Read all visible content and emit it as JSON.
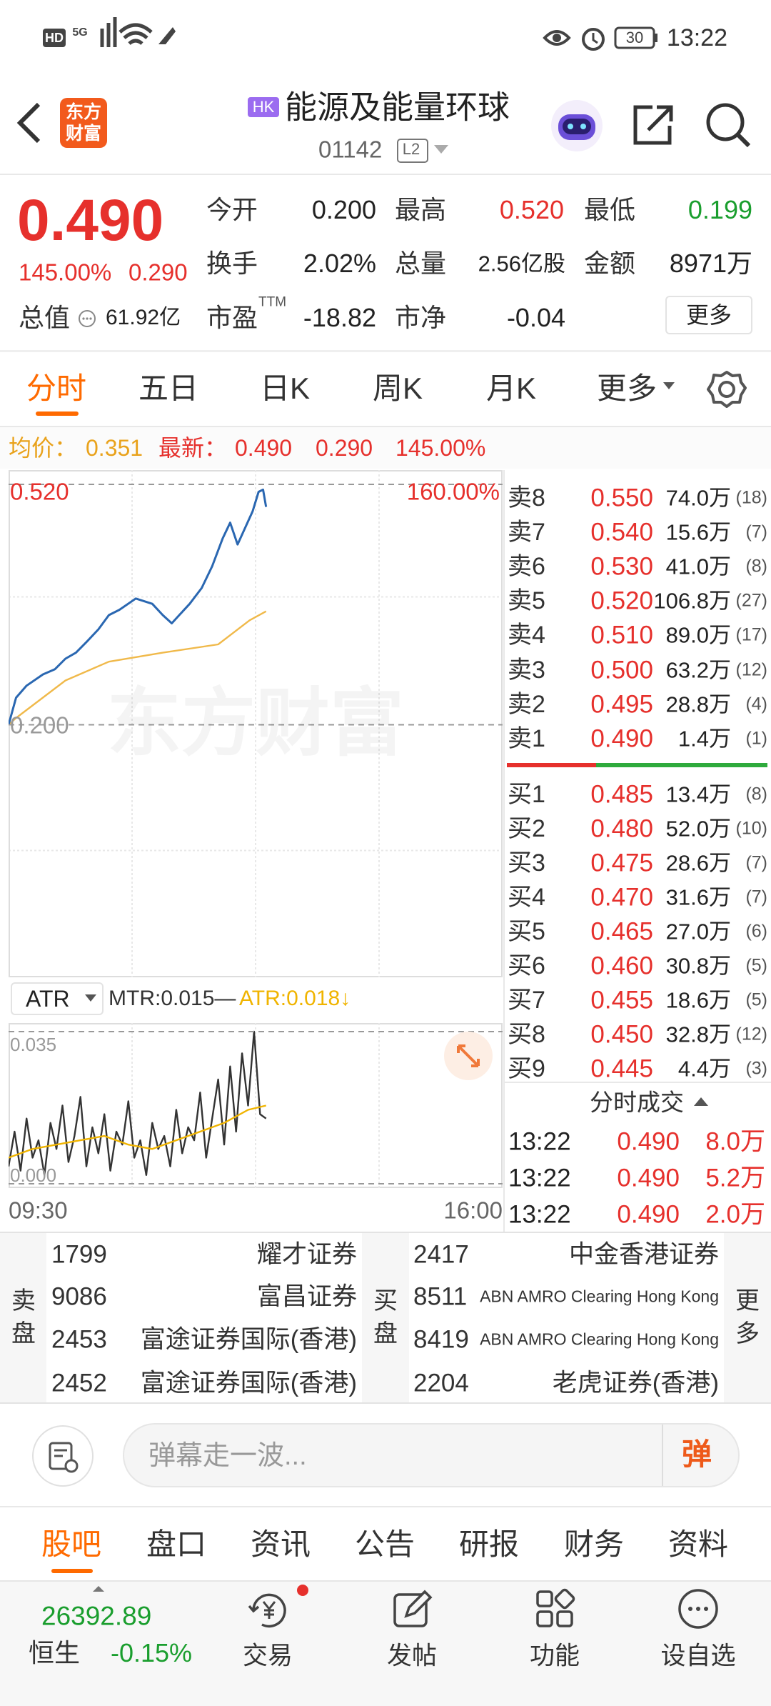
{
  "status_bar": {
    "network": "HD",
    "signal": "5G",
    "battery": "30",
    "time": "13:22"
  },
  "header": {
    "logo": "东方财富",
    "market": "HK",
    "title": "能源及能量环球",
    "code": "01142",
    "level": "L2"
  },
  "quote": {
    "price": "0.490",
    "change_pct": "145.00%",
    "change": "0.290",
    "fields": [
      {
        "label": "今开",
        "value": "0.200"
      },
      {
        "label": "最高",
        "value": "0.520"
      },
      {
        "label": "最低",
        "value": "0.199"
      },
      {
        "label": "换手",
        "value": "2.02%"
      },
      {
        "label": "总量",
        "value": "2.56亿股"
      },
      {
        "label": "金额",
        "value": "8971万"
      },
      {
        "label": "总值",
        "value": "61.92亿"
      },
      {
        "label": "市盈",
        "superscript": "TTM",
        "value": "-18.82"
      },
      {
        "label": "市净",
        "value": "-0.04"
      }
    ],
    "more": "更多"
  },
  "tabs": {
    "items": [
      "分时",
      "五日",
      "日K",
      "周K",
      "月K",
      "更多"
    ],
    "active": 0
  },
  "info": {
    "avg": "0.351",
    "latest": "0.490",
    "change": "0.290",
    "change_pct": "145.00%"
  },
  "chart_data": [
    {
      "type": "line",
      "watermark": "东方财富",
      "grid": true,
      "xlim": [
        0,
        330
      ],
      "ylim": [
        -0.12,
        0.52
      ],
      "y2lim": [
        -160,
        160
      ],
      "yticks": [
        {
          "value": 0.52,
          "label": "0.520"
        },
        {
          "value": 0.2,
          "label": "0.200"
        }
      ],
      "y2ticks": [
        {
          "value": 160,
          "label": "160.00%"
        }
      ],
      "series": [
        {
          "name": "均价：",
          "color": "#f0b94a",
          "x": [
            0,
            5,
            38,
            67,
            103,
            140,
            161,
            172
          ],
          "values": [
            0.2,
            0.209,
            0.259,
            0.284,
            0.296,
            0.307,
            0.339,
            0.351
          ]
        },
        {
          "name": "最新：",
          "color": "#2a67b1",
          "x": [
            0,
            5,
            12,
            23,
            31,
            38,
            45,
            52,
            60,
            67,
            74,
            85,
            96,
            103,
            109,
            114,
            121,
            129,
            136,
            143,
            148,
            153,
            158,
            163,
            167,
            170,
            172
          ],
          "values": [
            0.2,
            0.236,
            0.252,
            0.267,
            0.274,
            0.288,
            0.296,
            0.31,
            0.327,
            0.346,
            0.353,
            0.368,
            0.361,
            0.346,
            0.335,
            0.346,
            0.361,
            0.382,
            0.411,
            0.448,
            0.469,
            0.44,
            0.462,
            0.484,
            0.51,
            0.513,
            0.49
          ]
        }
      ]
    },
    {
      "type": "line",
      "indicator": "ATR",
      "grid": true,
      "xlim": [
        0,
        330
      ],
      "ylim": [
        0,
        0.035
      ],
      "xticks": [
        {
          "value": 0,
          "label": "09:30"
        },
        {
          "value": 330,
          "label": "16:00"
        }
      ],
      "yticks": [
        {
          "value": 0.035,
          "label": "0.035"
        },
        {
          "value": 0,
          "label": "0.000"
        }
      ],
      "series": [
        {
          "name": "MTR",
          "legend": "MTR:0.015—",
          "color": "#333333",
          "x": [
            0,
            4,
            8,
            12,
            16,
            20,
            24,
            28,
            32,
            36,
            40,
            44,
            48,
            52,
            56,
            60,
            64,
            68,
            72,
            76,
            80,
            84,
            88,
            92,
            96,
            100,
            104,
            108,
            112,
            116,
            120,
            124,
            128,
            132,
            136,
            140,
            144,
            148,
            152,
            156,
            160,
            164,
            168,
            172
          ],
          "values": [
            0.004,
            0.012,
            0.003,
            0.015,
            0.006,
            0.01,
            0.002,
            0.014,
            0.008,
            0.018,
            0.005,
            0.011,
            0.02,
            0.004,
            0.013,
            0.007,
            0.016,
            0.003,
            0.012,
            0.009,
            0.019,
            0.006,
            0.01,
            0.002,
            0.014,
            0.008,
            0.011,
            0.004,
            0.017,
            0.007,
            0.013,
            0.01,
            0.021,
            0.006,
            0.015,
            0.024,
            0.009,
            0.027,
            0.012,
            0.03,
            0.018,
            0.035,
            0.016,
            0.015
          ]
        },
        {
          "name": "ATR",
          "legend": "ATR:0.018↓",
          "color": "#f0b400",
          "x": [
            0,
            16,
            32,
            48,
            64,
            80,
            96,
            112,
            128,
            144,
            160,
            172
          ],
          "values": [
            0.006,
            0.008,
            0.009,
            0.01,
            0.011,
            0.009,
            0.008,
            0.01,
            0.012,
            0.014,
            0.017,
            0.018
          ]
        }
      ]
    }
  ],
  "order_book": {
    "asks": [
      {
        "label": "卖8",
        "price": "0.550",
        "volume": "74.0万",
        "count": "(18)"
      },
      {
        "label": "卖7",
        "price": "0.540",
        "volume": "15.6万",
        "count": "(7)"
      },
      {
        "label": "卖6",
        "price": "0.530",
        "volume": "41.0万",
        "count": "(8)"
      },
      {
        "label": "卖5",
        "price": "0.520",
        "volume": "106.8万",
        "count": "(27)"
      },
      {
        "label": "卖4",
        "price": "0.510",
        "volume": "89.0万",
        "count": "(17)"
      },
      {
        "label": "卖3",
        "price": "0.500",
        "volume": "63.2万",
        "count": "(12)"
      },
      {
        "label": "卖2",
        "price": "0.495",
        "volume": "28.8万",
        "count": "(4)"
      },
      {
        "label": "卖1",
        "price": "0.490",
        "volume": "1.4万",
        "count": "(1)"
      }
    ],
    "bids": [
      {
        "label": "买1",
        "price": "0.485",
        "volume": "13.4万",
        "count": "(8)"
      },
      {
        "label": "买2",
        "price": "0.480",
        "volume": "52.0万",
        "count": "(10)"
      },
      {
        "label": "买3",
        "price": "0.475",
        "volume": "28.6万",
        "count": "(7)"
      },
      {
        "label": "买4",
        "price": "0.470",
        "volume": "31.6万",
        "count": "(7)"
      },
      {
        "label": "买5",
        "price": "0.465",
        "volume": "27.0万",
        "count": "(6)"
      },
      {
        "label": "买6",
        "price": "0.460",
        "volume": "30.8万",
        "count": "(5)"
      },
      {
        "label": "买7",
        "price": "0.455",
        "volume": "18.6万",
        "count": "(5)"
      },
      {
        "label": "买8",
        "price": "0.450",
        "volume": "32.8万",
        "count": "(12)"
      },
      {
        "label": "买9",
        "price": "0.445",
        "volume": "4.4万",
        "count": "(3)"
      }
    ]
  },
  "trades": {
    "title": "分时成交",
    "rows": [
      [
        "13:22",
        "0.490",
        "8.0万"
      ],
      [
        "13:22",
        "0.490",
        "5.2万"
      ],
      [
        "13:22",
        "0.490",
        "2.0万"
      ]
    ]
  },
  "brokers": {
    "sell_label": "卖盘",
    "buy_label": "买盘",
    "more": "更多",
    "sell": [
      [
        "1799",
        "耀才证券"
      ],
      [
        "9086",
        "富昌证券"
      ],
      [
        "2453",
        "富途证券国际(香港)"
      ],
      [
        "2452",
        "富途证券国际(香港)"
      ]
    ],
    "buy": [
      [
        "2417",
        "中金香港证券"
      ],
      [
        "8511",
        "ABN AMRO Clearing Hong Kong"
      ],
      [
        "8419",
        "ABN AMRO Clearing Hong Kong"
      ],
      [
        "2204",
        "老虎证券(香港)"
      ]
    ]
  },
  "comment": {
    "placeholder": "弹幕走一波...",
    "button": "弹"
  },
  "bottom_tabs": {
    "items": [
      "股吧",
      "盘口",
      "资讯",
      "公告",
      "研报",
      "财务",
      "资料"
    ],
    "active": 0
  },
  "nav": {
    "index": {
      "value": "26392.89",
      "name": "恒生",
      "change": "-0.15%"
    },
    "items": [
      "交易",
      "发帖",
      "功能",
      "设自选"
    ]
  }
}
